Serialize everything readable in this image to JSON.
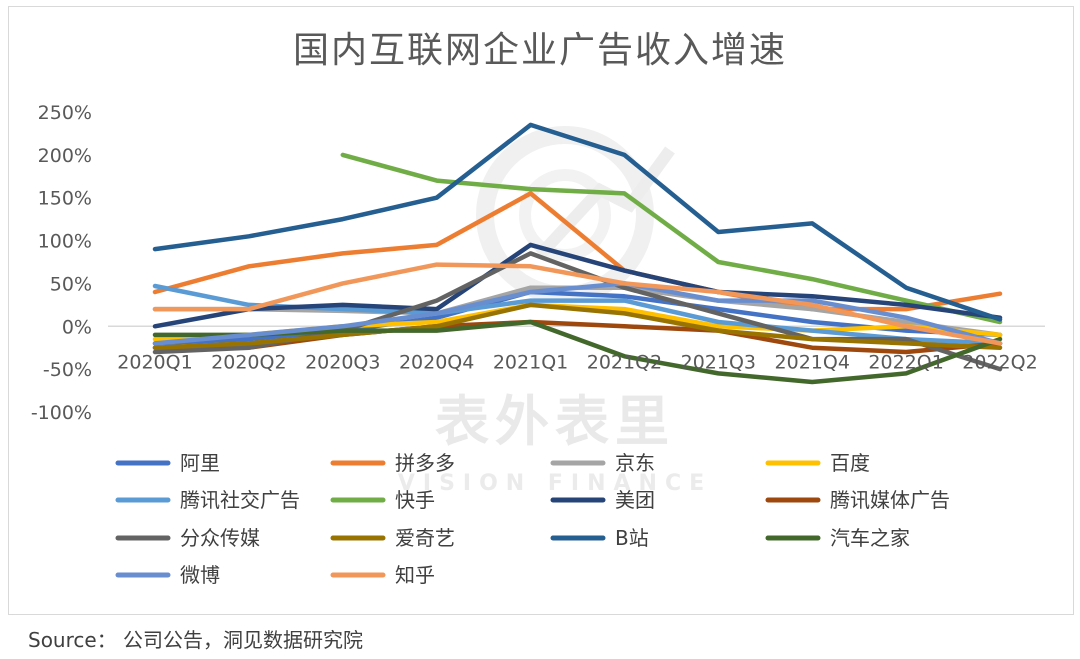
{
  "source": "Source： 公司公告，洞见数据研究院",
  "watermark": {
    "main": "表外表里",
    "sub": "VISION FINANCE"
  },
  "chart_data": {
    "type": "line",
    "title": "国内互联网企业广告收入增速",
    "categories": [
      "2020Q1",
      "2020Q2",
      "2020Q3",
      "2020Q4",
      "2021Q1",
      "2021Q2",
      "2021Q3",
      "2021Q4",
      "2022Q1",
      "2022Q2"
    ],
    "y_ticks": [
      "250%",
      "200%",
      "150%",
      "100%",
      "50%",
      "0%",
      "-50%",
      "-100%"
    ],
    "ylim": [
      -100,
      250
    ],
    "grid": false,
    "legend_position": "bottom",
    "series": [
      {
        "name": "阿里",
        "color": "#4472c4",
        "values": [
          -20,
          -15,
          -5,
          10,
          40,
          35,
          20,
          5,
          -5,
          -10
        ]
      },
      {
        "name": "拼多多",
        "color": "#ed7d31",
        "values": [
          40,
          70,
          85,
          95,
          155,
          65,
          40,
          20,
          20,
          38
        ]
      },
      {
        "name": "京东",
        "color": "#a5a5a5",
        "values": [
          20,
          20,
          18,
          15,
          45,
          45,
          30,
          20,
          5,
          -10
        ]
      },
      {
        "name": "百度",
        "color": "#ffc000",
        "values": [
          -15,
          -10,
          0,
          5,
          25,
          20,
          0,
          -5,
          0,
          -10
        ]
      },
      {
        "name": "腾讯社交广告",
        "color": "#5b9bd5",
        "values": [
          47,
          25,
          20,
          15,
          30,
          30,
          5,
          -5,
          -15,
          -20
        ]
      },
      {
        "name": "快手",
        "color": "#70ad47",
        "values": [
          null,
          null,
          200,
          170,
          160,
          155,
          75,
          55,
          30,
          5
        ]
      },
      {
        "name": "美团",
        "color": "#264478",
        "values": [
          0,
          20,
          25,
          20,
          95,
          65,
          40,
          35,
          25,
          10
        ]
      },
      {
        "name": "腾讯媒体广告",
        "color": "#9e480e",
        "values": [
          -25,
          -25,
          -10,
          0,
          5,
          0,
          -5,
          -25,
          -30,
          -20
        ]
      },
      {
        "name": "分众传媒",
        "color": "#636363",
        "values": [
          -30,
          -25,
          -5,
          30,
          85,
          45,
          15,
          -15,
          -15,
          -50
        ]
      },
      {
        "name": "爱奇艺",
        "color": "#997300",
        "values": [
          -25,
          -20,
          -10,
          0,
          25,
          15,
          -5,
          -15,
          -20,
          -25
        ]
      },
      {
        "name": "B站",
        "color": "#255e91",
        "values": [
          90,
          105,
          125,
          150,
          235,
          200,
          110,
          120,
          45,
          8
        ]
      },
      {
        "name": "汽车之家",
        "color": "#43682b",
        "values": [
          -10,
          -10,
          -5,
          -5,
          5,
          -35,
          -55,
          -65,
          -55,
          -15
        ]
      },
      {
        "name": "微博",
        "color": "#698ed0",
        "values": [
          -20,
          -10,
          0,
          15,
          40,
          50,
          30,
          30,
          10,
          -20
        ]
      },
      {
        "name": "知乎",
        "color": "#f1975a",
        "values": [
          20,
          20,
          50,
          72,
          70,
          50,
          40,
          25,
          0,
          -20
        ]
      }
    ]
  }
}
